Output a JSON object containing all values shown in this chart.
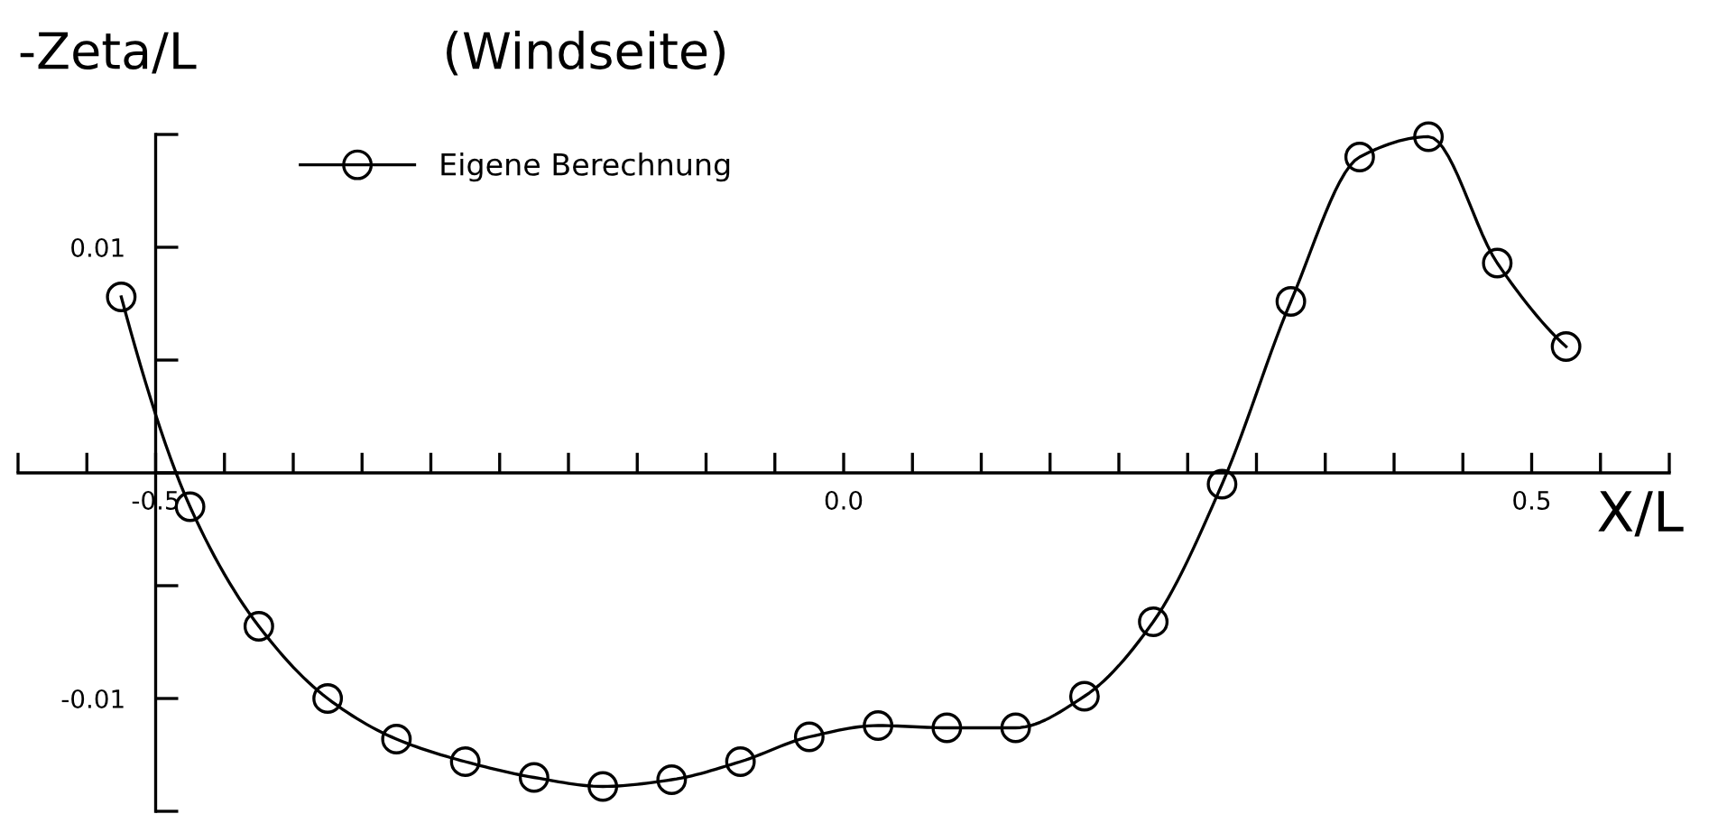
{
  "chart_data": {
    "type": "line",
    "title": "(Windseite)",
    "ylabel": "-Zeta/L",
    "xlabel": "X/L",
    "x": [
      -0.525,
      -0.475,
      -0.425,
      -0.375,
      -0.325,
      -0.275,
      -0.225,
      -0.175,
      -0.125,
      -0.075,
      -0.025,
      0.025,
      0.075,
      0.125,
      0.175,
      0.225,
      0.275,
      0.325,
      0.375,
      0.425,
      0.475,
      0.525
    ],
    "series": [
      {
        "name": "Eigene Berechnung",
        "color": "#000000",
        "values": [
          0.0078,
          -0.0015,
          -0.0068,
          -0.01,
          -0.0118,
          -0.0128,
          -0.0135,
          -0.0139,
          -0.0136,
          -0.0128,
          -0.0117,
          -0.0112,
          -0.0113,
          -0.0113,
          -0.0099,
          -0.0066,
          -0.0005,
          0.0076,
          0.014,
          0.0149,
          0.0093,
          0.0056
        ]
      }
    ],
    "xlim": [
      -0.6,
      0.6
    ],
    "xticks": [
      {
        "value": -0.6,
        "label": null
      },
      {
        "value": -0.55,
        "label": null
      },
      {
        "value": -0.5,
        "label": "-0.5"
      },
      {
        "value": -0.45,
        "label": null
      },
      {
        "value": -0.4,
        "label": null
      },
      {
        "value": -0.35,
        "label": null
      },
      {
        "value": -0.3,
        "label": null
      },
      {
        "value": -0.25,
        "label": null
      },
      {
        "value": -0.2,
        "label": null
      },
      {
        "value": -0.15,
        "label": null
      },
      {
        "value": -0.1,
        "label": null
      },
      {
        "value": -0.05,
        "label": null
      },
      {
        "value": 0.0,
        "label": "0.0"
      },
      {
        "value": 0.05,
        "label": null
      },
      {
        "value": 0.1,
        "label": null
      },
      {
        "value": 0.15,
        "label": null
      },
      {
        "value": 0.2,
        "label": null
      },
      {
        "value": 0.25,
        "label": null
      },
      {
        "value": 0.3,
        "label": null
      },
      {
        "value": 0.35,
        "label": null
      },
      {
        "value": 0.4,
        "label": null
      },
      {
        "value": 0.45,
        "label": null
      },
      {
        "value": 0.5,
        "label": "0.5"
      },
      {
        "value": 0.55,
        "label": null
      },
      {
        "value": 0.6,
        "label": null
      }
    ],
    "ylim": [
      -0.015,
      0.015
    ],
    "yticks": [
      -0.01,
      0.01
    ],
    "legend": "top left",
    "marker": "circle",
    "line_style": "solid"
  }
}
